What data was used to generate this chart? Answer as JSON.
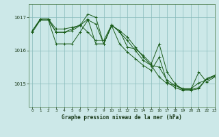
{
  "title": "Graphe pression niveau de la mer (hPa)",
  "background_color": "#cce8e8",
  "grid_color_major": "#88bbbb",
  "grid_color_minor": "#aad4d4",
  "line_color": "#1a5c1a",
  "xlim": [
    -0.5,
    23
  ],
  "ylim": [
    1014.3,
    1017.4
  ],
  "yticks": [
    1015,
    1016,
    1017
  ],
  "xticks": [
    0,
    1,
    2,
    3,
    4,
    5,
    6,
    7,
    8,
    9,
    10,
    11,
    12,
    13,
    14,
    15,
    16,
    17,
    18,
    19,
    20,
    21,
    22,
    23
  ],
  "series": [
    [
      1016.6,
      1016.95,
      1016.95,
      1016.65,
      1016.65,
      1016.7,
      1016.75,
      1016.95,
      1016.2,
      1016.2,
      1016.75,
      1016.6,
      1016.4,
      1016.1,
      1015.8,
      1015.55,
      1015.5,
      1015.1,
      1014.95,
      1014.82,
      1014.82,
      1014.88,
      1015.15,
      1015.25
    ],
    [
      1016.55,
      1016.92,
      1016.92,
      1016.2,
      1016.2,
      1016.2,
      1016.55,
      1016.92,
      1016.8,
      1016.2,
      1016.75,
      1016.2,
      1015.95,
      1015.75,
      1015.55,
      1015.4,
      1015.8,
      1015.05,
      1014.88,
      1014.8,
      1014.8,
      1014.85,
      1015.15,
      1015.25
    ],
    [
      1016.6,
      1016.95,
      1016.95,
      1016.55,
      1016.55,
      1016.6,
      1016.75,
      1017.1,
      1017.0,
      1016.2,
      1016.75,
      1016.6,
      1016.1,
      1016.05,
      1015.85,
      1015.6,
      1016.2,
      1015.35,
      1015.0,
      1014.82,
      1014.82,
      1015.35,
      1015.05,
      1015.2
    ],
    [
      1016.6,
      1016.92,
      1016.92,
      1016.55,
      1016.55,
      1016.65,
      1016.78,
      1016.55,
      1016.3,
      1016.3,
      1016.78,
      1016.55,
      1016.3,
      1016.0,
      1015.7,
      1015.55,
      1015.2,
      1015.0,
      1014.95,
      1014.85,
      1014.85,
      1015.02,
      1015.12,
      1015.22
    ]
  ]
}
